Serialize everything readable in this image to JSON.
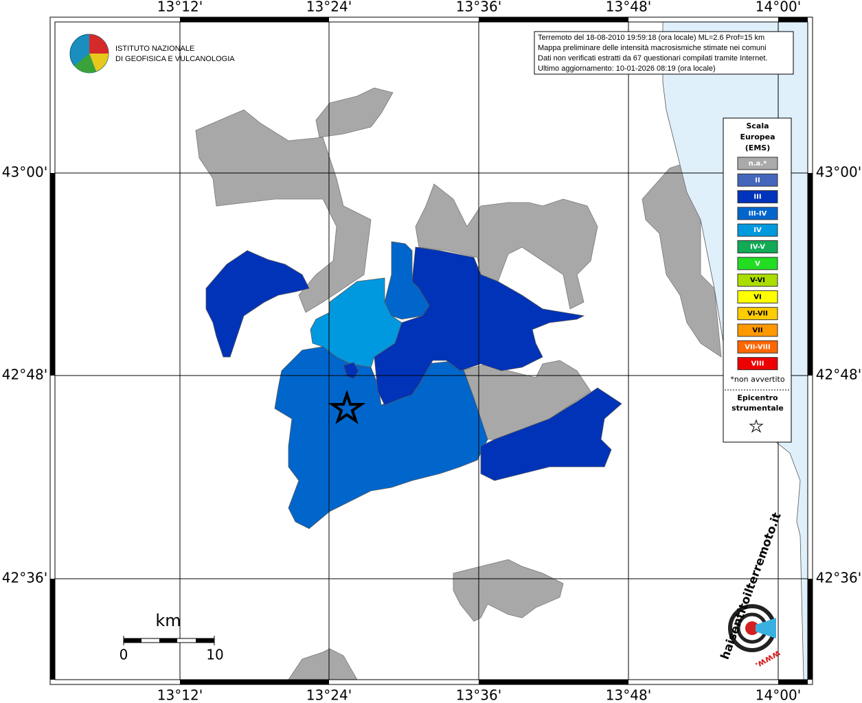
{
  "logo": {
    "line1": "ISTITUTO NAZIONALE",
    "line2": "DI GEOFISICA E VULCANOLOGIA"
  },
  "info": [
    "Terremoto del 18-08-2010 19:59:18 (ora locale) ML=2.6 Prof=15 km",
    "Mappa preliminare delle intensità macrosismiche stimate nei comuni",
    "Dati non verificati estratti da 67 questionari compilati tramite Internet.",
    "Ultimo aggiornamento: 10-01-2026 08:19 (ora locale)"
  ],
  "lon_labels": [
    "13°12'",
    "13°24'",
    "13°36'",
    "13°48'",
    "14°00'"
  ],
  "lat_labels": [
    "43°00'",
    "42°48'",
    "42°36'"
  ],
  "legend": {
    "title": [
      "Scala",
      "Europea",
      "(EMS)"
    ],
    "items": [
      {
        "label": "n.a.*",
        "color": "#aaaaaa"
      },
      {
        "label": "II",
        "color": "#4466bb"
      },
      {
        "label": "III",
        "color": "#0033bb"
      },
      {
        "label": "III-IV",
        "color": "#0066cc"
      },
      {
        "label": "IV",
        "color": "#0099dd"
      },
      {
        "label": "IV-V",
        "color": "#11aa55"
      },
      {
        "label": "V",
        "color": "#22dd22"
      },
      {
        "label": "V-VI",
        "color": "#aadd00"
      },
      {
        "label": "VI",
        "color": "#ffff00"
      },
      {
        "label": "VI-VII",
        "color": "#ffcc00"
      },
      {
        "label": "VII",
        "color": "#ff9900"
      },
      {
        "label": "VII-VIII",
        "color": "#ff6600"
      },
      {
        "label": "VIII",
        "color": "#ee0000"
      }
    ],
    "note": "*non avvertito",
    "epicenter": [
      "Epicentro",
      "strumentale"
    ]
  },
  "scale": {
    "unit": "km",
    "ticks": [
      "0",
      "10"
    ]
  },
  "site": {
    "prefix": "www.",
    "name": "haisentitoilterremoto.it"
  }
}
